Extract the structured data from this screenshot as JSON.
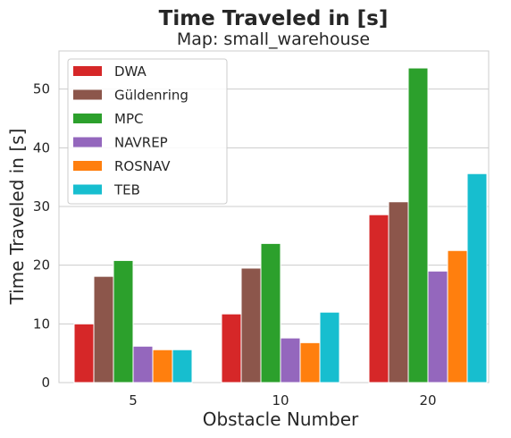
{
  "chart_data": {
    "type": "bar",
    "title": "Time Traveled in [s]",
    "subtitle": "Map: small_warehouse",
    "xlabel": "Obstacle Number",
    "ylabel": "Time Traveled in [s]",
    "categories": [
      "5",
      "10",
      "20"
    ],
    "ylim": [
      0,
      56.5
    ],
    "yticks": [
      0,
      10,
      20,
      30,
      40,
      50
    ],
    "grid": true,
    "legend_position": "top-left",
    "series": [
      {
        "name": "DWA",
        "color": "#d62728",
        "values": [
          10.0,
          11.7,
          28.6
        ]
      },
      {
        "name": "Güldenring",
        "color": "#8c564b",
        "values": [
          18.1,
          19.5,
          30.8
        ]
      },
      {
        "name": "MPC",
        "color": "#2ca02c",
        "values": [
          20.8,
          23.7,
          53.6
        ]
      },
      {
        "name": "NAVREP",
        "color": "#9467bd",
        "values": [
          6.2,
          7.6,
          19.0
        ]
      },
      {
        "name": "ROSNAV",
        "color": "#ff7f0e",
        "values": [
          5.6,
          6.8,
          22.5
        ]
      },
      {
        "name": "TEB",
        "color": "#17becf",
        "values": [
          5.6,
          12.0,
          35.6
        ]
      }
    ]
  }
}
